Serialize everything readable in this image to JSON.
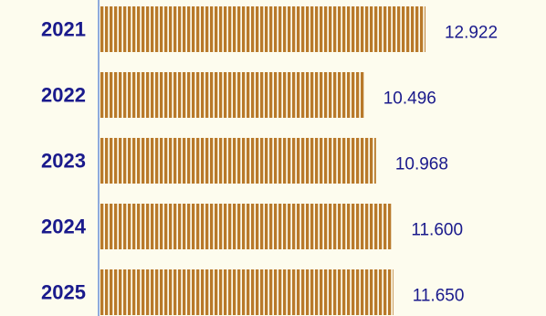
{
  "chart_data": {
    "type": "bar",
    "orientation": "horizontal",
    "categories": [
      "2021",
      "2022",
      "2023",
      "2024",
      "2025"
    ],
    "values": [
      12.922,
      10.496,
      10.968,
      11.6,
      11.65
    ],
    "value_labels": [
      "12.922",
      "10.496",
      "10.968",
      "11.600",
      "11.650"
    ],
    "title": "",
    "xlabel": "",
    "ylabel": "",
    "grid": false,
    "legend": "none"
  },
  "colors": {
    "background": "#fdfcee",
    "bar": "#b8792a",
    "bar_stripe": "#fdfcee",
    "axis": "#6b8ed6",
    "text": "#1a1a8c"
  }
}
